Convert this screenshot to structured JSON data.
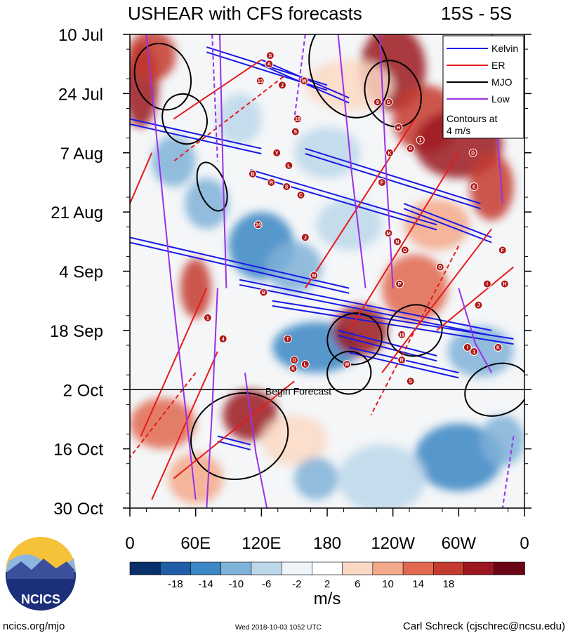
{
  "chart_data": {
    "type": "heatmap",
    "title": "USHEAR with CFS forecasts",
    "region": "15S - 5S",
    "colorbar_unit": "m/s",
    "colorbar_ticks": [
      "-18",
      "-14",
      "-10",
      "-6",
      "-2",
      "2",
      "6",
      "10",
      "14",
      "18"
    ],
    "colorbar_colors": [
      "#08306b",
      "#1f5fa8",
      "#3b86c4",
      "#7fb2d8",
      "#bcd7ea",
      "#eef4f8",
      "#ffffff",
      "#fbd9c4",
      "#f3a98a",
      "#e0694f",
      "#c43a2e",
      "#9b1620",
      "#6b0516"
    ],
    "y_ticks": [
      "10 Jul",
      "24 Jul",
      "7 Aug",
      "21 Aug",
      "4 Sep",
      "18 Sep",
      "2 Oct",
      "16 Oct",
      "30 Oct"
    ],
    "x_ticks": [
      "0",
      "60E",
      "120E",
      "180",
      "120W",
      "60W",
      "0"
    ],
    "x_range_deg": [
      0,
      360
    ],
    "time_range_days": [
      0,
      112
    ],
    "forecast_start_day": 84,
    "forecast_label": "Begin Forecast",
    "legend": [
      {
        "name": "Kelvin",
        "color": "#1a1ae6"
      },
      {
        "name": "ER",
        "color": "#e61a1a"
      },
      {
        "name": "MJO",
        "color": "#000000"
      },
      {
        "name": "Low",
        "color": "#9b30e6"
      }
    ],
    "contour_note": "Contours at\n4 m/s",
    "storms": [
      {
        "label": "S",
        "lon": 128,
        "day": 5
      },
      {
        "label": "A",
        "lon": 127,
        "day": 7
      },
      {
        "label": "13",
        "lon": 119,
        "day": 11
      },
      {
        "label": "J",
        "lon": 139,
        "day": 12
      },
      {
        "label": "W",
        "lon": 159,
        "day": 11
      },
      {
        "label": "16",
        "lon": 153,
        "day": 20
      },
      {
        "label": "S",
        "lon": 151,
        "day": 23
      },
      {
        "label": "Y",
        "lon": 134,
        "day": 28
      },
      {
        "label": "L",
        "lon": 145,
        "day": 31
      },
      {
        "label": "B",
        "lon": 112,
        "day": 33
      },
      {
        "label": "R",
        "lon": 129,
        "day": 35
      },
      {
        "label": "S",
        "lon": 143,
        "day": 36
      },
      {
        "label": "C",
        "lon": 156,
        "day": 38
      },
      {
        "label": "24",
        "lon": 117,
        "day": 45
      },
      {
        "label": "J",
        "lon": 160,
        "day": 48
      },
      {
        "label": "9",
        "lon": 226,
        "day": 16
      },
      {
        "label": "G",
        "lon": 236,
        "day": 16
      },
      {
        "label": "H",
        "lon": 245,
        "day": 22
      },
      {
        "label": "K",
        "lon": 237,
        "day": 28
      },
      {
        "label": "D",
        "lon": 256,
        "day": 27
      },
      {
        "label": "1",
        "lon": 265,
        "day": 25
      },
      {
        "label": "D",
        "lon": 313,
        "day": 28
      },
      {
        "label": "E",
        "lon": 314,
        "day": 36
      },
      {
        "label": "F",
        "lon": 230,
        "day": 35
      },
      {
        "label": "M",
        "lon": 236,
        "day": 47
      },
      {
        "label": "N",
        "lon": 244,
        "day": 49
      },
      {
        "label": "O",
        "lon": 251,
        "day": 51
      },
      {
        "label": "O",
        "lon": 283,
        "day": 55
      },
      {
        "label": "F",
        "lon": 340,
        "day": 51
      },
      {
        "label": "P",
        "lon": 246,
        "day": 59
      },
      {
        "label": "I",
        "lon": 326,
        "day": 59
      },
      {
        "label": "H",
        "lon": 342,
        "day": 59
      },
      {
        "label": "J",
        "lon": 318,
        "day": 64
      },
      {
        "label": "M",
        "lon": 168,
        "day": 57
      },
      {
        "label": "B",
        "lon": 122,
        "day": 61
      },
      {
        "label": "1",
        "lon": 71,
        "day": 67
      },
      {
        "label": "19",
        "lon": 248,
        "day": 71
      },
      {
        "label": "4",
        "lon": 85,
        "day": 72
      },
      {
        "label": "T",
        "lon": 144,
        "day": 72
      },
      {
        "label": "I",
        "lon": 308,
        "day": 74
      },
      {
        "label": "1",
        "lon": 314,
        "day": 75
      },
      {
        "label": "K",
        "lon": 336,
        "day": 74
      },
      {
        "label": "O",
        "lon": 150,
        "day": 77
      },
      {
        "label": "R",
        "lon": 248,
        "day": 77
      },
      {
        "label": "L",
        "lon": 160,
        "day": 78
      },
      {
        "label": "K",
        "lon": 149,
        "day": 79
      },
      {
        "label": "W",
        "lon": 198,
        "day": 78
      },
      {
        "label": "S",
        "lon": 256,
        "day": 82
      }
    ]
  },
  "logo": {
    "text": "NCICS"
  },
  "footer": {
    "url": "ncics.org/mjo",
    "timestamp": "Wed 2018-10-03 1052 UTC",
    "author": "Carl Schreck (cjschrec@ncsu.edu)"
  }
}
